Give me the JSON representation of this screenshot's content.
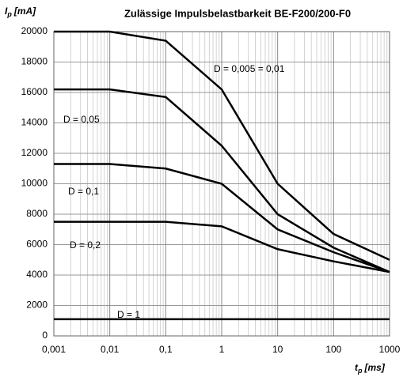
{
  "chart_data": {
    "type": "line",
    "title": "Zulässige Impulsbelastbarkeit BE-F200/200-F0",
    "ylabel": {
      "symbol": "I",
      "subscript": "p",
      "unit": "[mA]"
    },
    "xlabel": {
      "symbol": "t",
      "subscript": "p",
      "unit": "[ms]"
    },
    "x": [
      0.001,
      0.01,
      0.1,
      1,
      10,
      100,
      1000
    ],
    "xscale": "log",
    "xlim": [
      0.001,
      1000
    ],
    "xticks": [
      {
        "value": 0.001,
        "label": "0,001"
      },
      {
        "value": 0.01,
        "label": "0,01"
      },
      {
        "value": 0.1,
        "label": "0,1"
      },
      1,
      10,
      100,
      1000
    ],
    "x_minor_ticks": [
      0.002,
      0.003,
      0.004,
      0.005,
      0.006,
      0.007,
      0.008,
      0.009,
      0.02,
      0.03,
      0.04,
      0.05,
      0.06,
      0.07,
      0.08,
      0.09,
      0.2,
      0.3,
      0.4,
      0.5,
      0.6,
      0.7,
      0.8,
      0.9,
      2,
      3,
      4,
      5,
      6,
      7,
      8,
      9,
      20,
      30,
      40,
      50,
      60,
      70,
      80,
      90,
      200,
      300,
      400,
      500,
      600,
      700,
      800,
      900
    ],
    "ylim": [
      0,
      20000
    ],
    "yticks": [
      0,
      2000,
      4000,
      6000,
      8000,
      10000,
      12000,
      14000,
      16000,
      18000,
      20000
    ],
    "grid": true,
    "series": [
      {
        "name": "D = 0,005 = 0,01",
        "color": "#000000",
        "values": [
          20000,
          20000,
          19400,
          16200,
          10000,
          6700,
          5000
        ]
      },
      {
        "name": "D = 0,05",
        "color": "#000000",
        "values": [
          16200,
          16200,
          15700,
          12500,
          8000,
          5800,
          4200
        ]
      },
      {
        "name": "D = 0,1",
        "color": "#000000",
        "values": [
          11300,
          11300,
          11000,
          10000,
          7000,
          5500,
          4200
        ]
      },
      {
        "name": "D = 0,2",
        "color": "#000000",
        "values": [
          7500,
          7500,
          7500,
          7200,
          5700,
          4900,
          4200
        ]
      },
      {
        "name": "D = 1",
        "color": "#000000",
        "values": [
          1100,
          1100,
          1100,
          1100,
          1100,
          1100,
          1100
        ]
      }
    ]
  }
}
